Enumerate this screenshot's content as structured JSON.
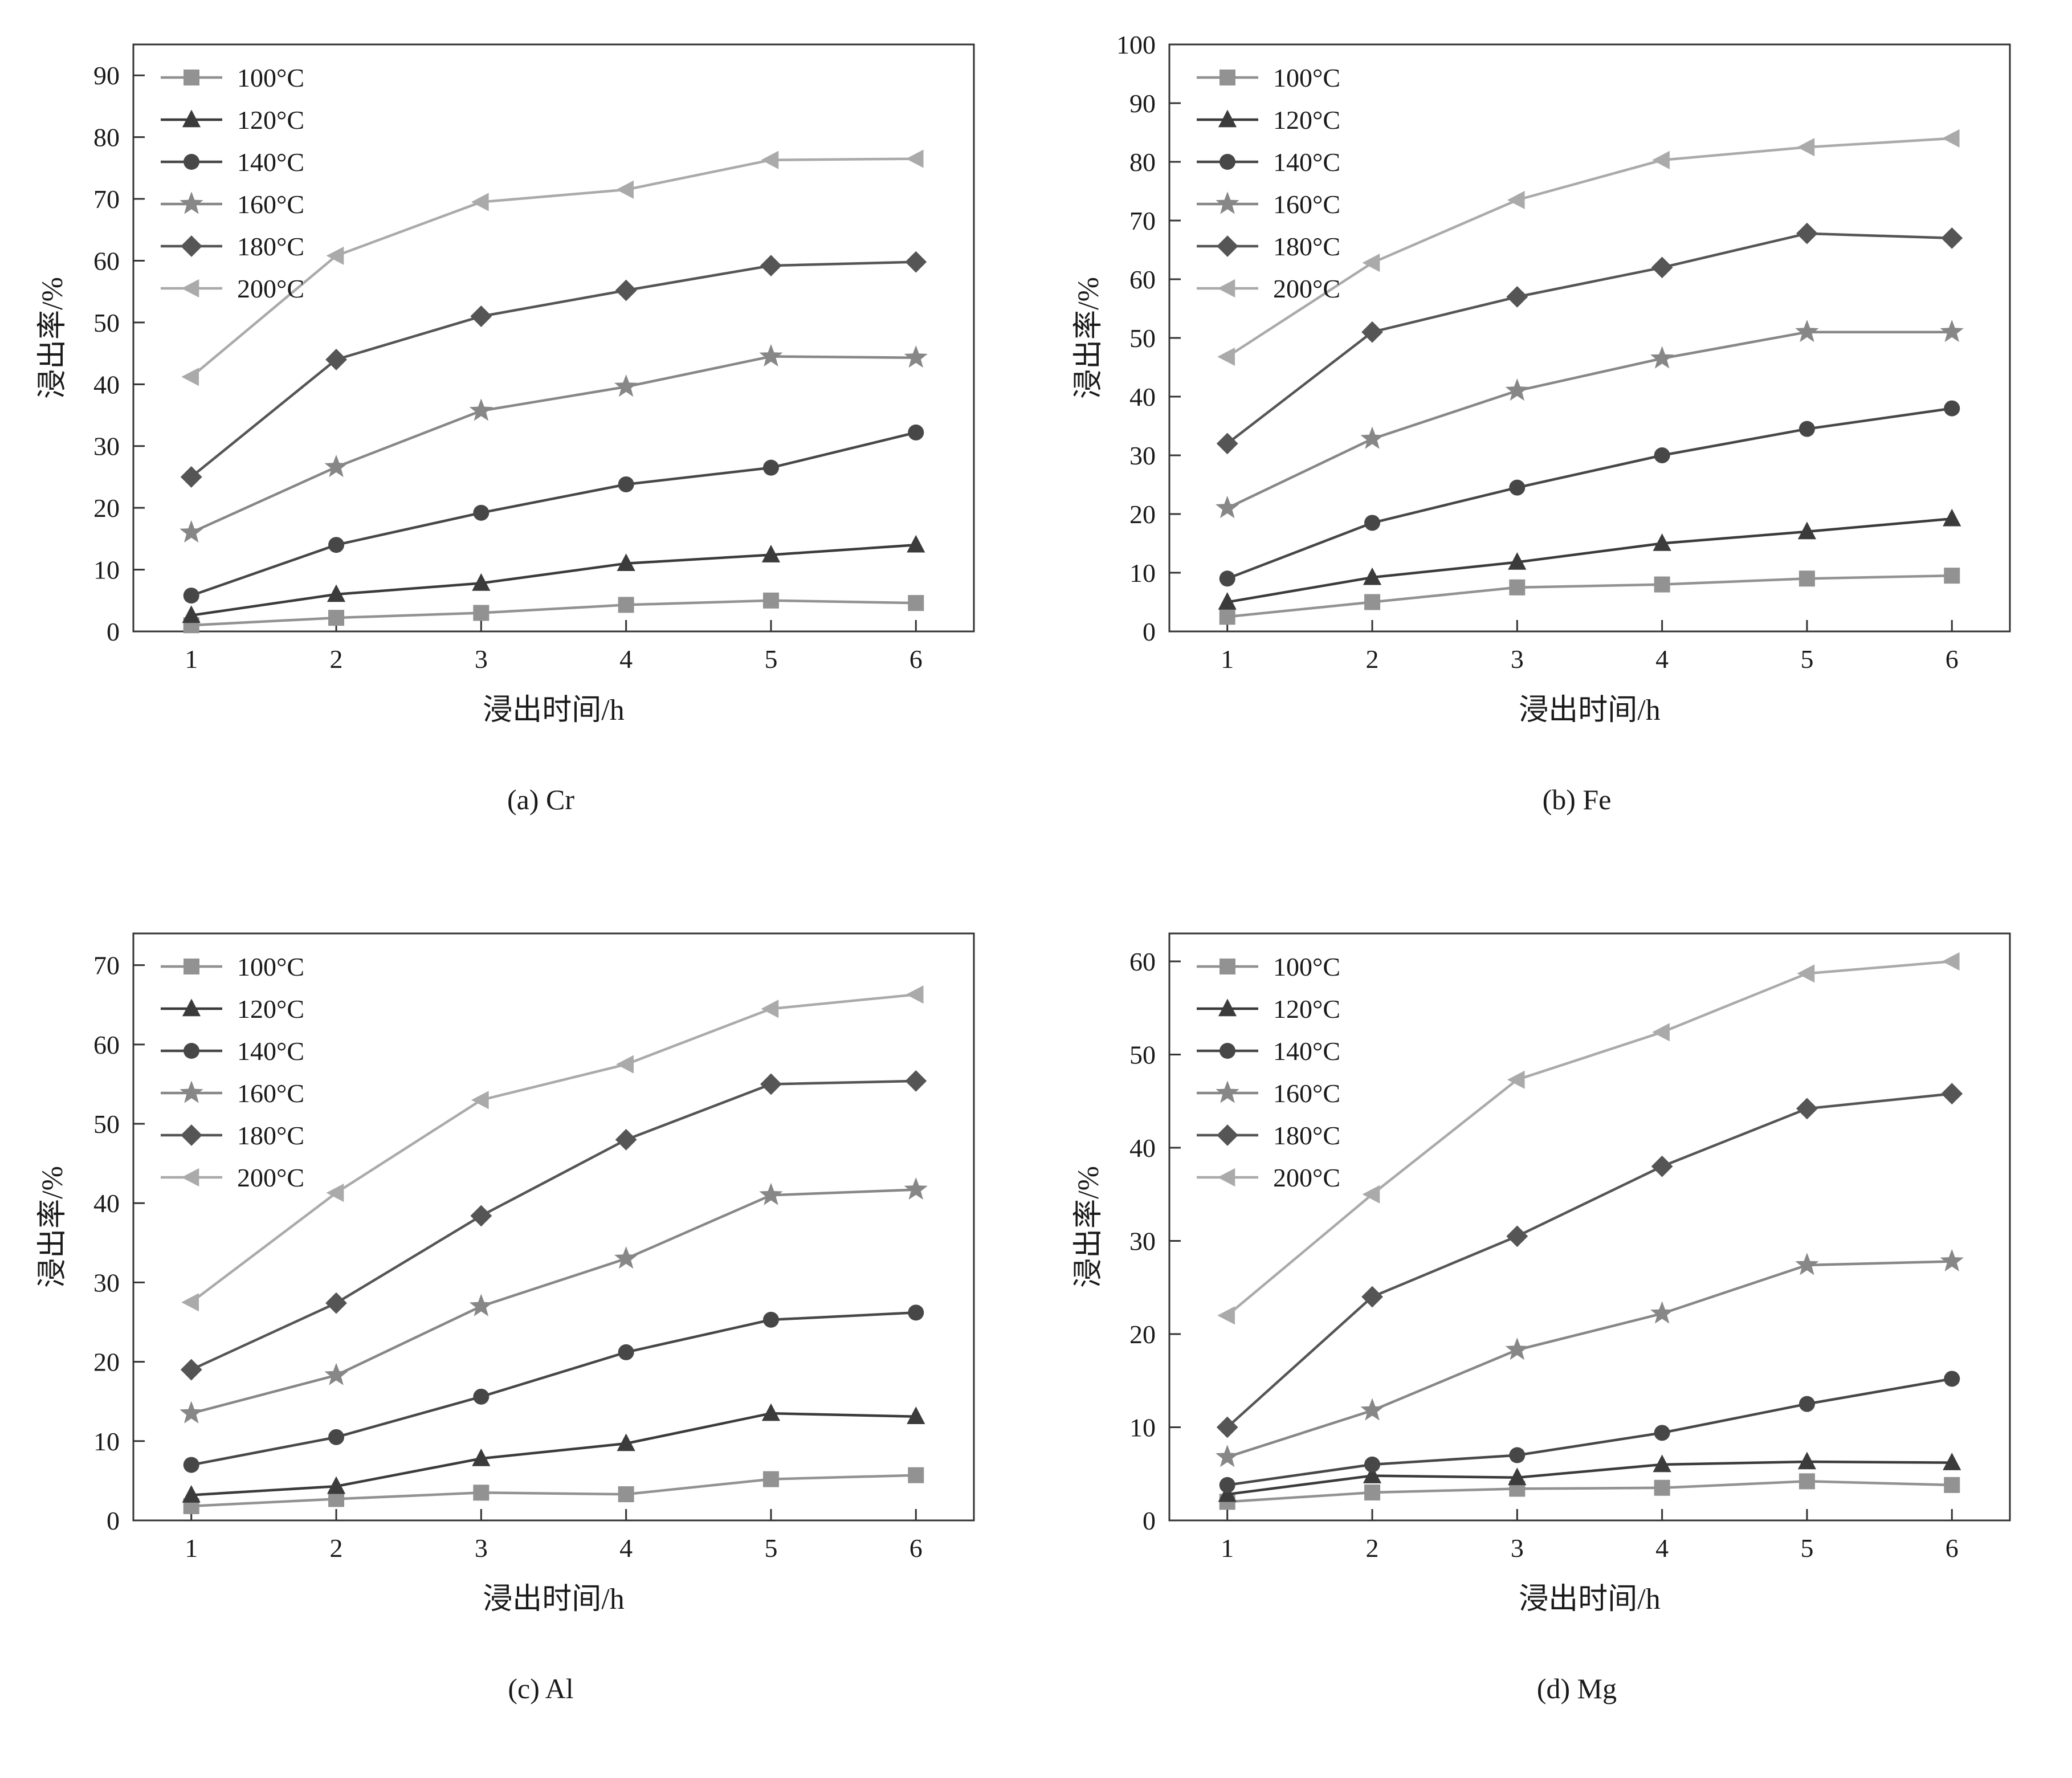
{
  "page": {
    "background": "#ffffff"
  },
  "series_styles": [
    {
      "label": "100°C",
      "marker": "square",
      "color": "#929292"
    },
    {
      "label": "120°C",
      "marker": "triangle",
      "color": "#3b3b3b"
    },
    {
      "label": "140°C",
      "marker": "circle",
      "color": "#474747"
    },
    {
      "label": "160°C",
      "marker": "star",
      "color": "#878787"
    },
    {
      "label": "180°C",
      "marker": "diamond",
      "color": "#555555"
    },
    {
      "label": "200°C",
      "marker": "triangle-left",
      "color": "#aaaaaa"
    }
  ],
  "chart_data": [
    {
      "type": "line",
      "title": "(a) Cr",
      "xlabel": "浸出时间/h",
      "ylabel": "浸出率/%",
      "x": [
        1,
        2,
        3,
        4,
        5,
        6
      ],
      "xlim": [
        0.6,
        6.4
      ],
      "ylim": [
        0,
        95
      ],
      "yticks": [
        0,
        10,
        20,
        30,
        40,
        50,
        60,
        70,
        80,
        90
      ],
      "legend_position": "top-left",
      "grid": false,
      "series": [
        {
          "name": "100°C",
          "values": [
            1.0,
            2.2,
            3.0,
            4.3,
            5.0,
            4.6
          ]
        },
        {
          "name": "120°C",
          "values": [
            2.6,
            6.0,
            7.8,
            11.0,
            12.4,
            14.0
          ]
        },
        {
          "name": "140°C",
          "values": [
            5.8,
            14.0,
            19.2,
            23.8,
            26.5,
            32.2
          ]
        },
        {
          "name": "160°C",
          "values": [
            16.0,
            26.6,
            35.7,
            39.6,
            44.5,
            44.3
          ]
        },
        {
          "name": "180°C",
          "values": [
            25.0,
            44.0,
            51.0,
            55.2,
            59.2,
            59.8
          ]
        },
        {
          "name": "200°C",
          "values": [
            41.2,
            60.8,
            69.5,
            71.5,
            76.3,
            76.5
          ]
        }
      ]
    },
    {
      "type": "line",
      "title": "(b) Fe",
      "xlabel": "浸出时间/h",
      "ylabel": "浸出率/%",
      "x": [
        1,
        2,
        3,
        4,
        5,
        6
      ],
      "xlim": [
        0.6,
        6.4
      ],
      "ylim": [
        0,
        100
      ],
      "yticks": [
        0,
        10,
        20,
        30,
        40,
        50,
        60,
        70,
        80,
        90,
        100
      ],
      "legend_position": "top-left",
      "grid": false,
      "series": [
        {
          "name": "100°C",
          "values": [
            2.5,
            5.0,
            7.5,
            8.0,
            9.0,
            9.5
          ]
        },
        {
          "name": "120°C",
          "values": [
            5.0,
            9.2,
            11.8,
            15.0,
            17.0,
            19.2
          ]
        },
        {
          "name": "140°C",
          "values": [
            9.0,
            18.5,
            24.5,
            30.0,
            34.5,
            38.0
          ]
        },
        {
          "name": "160°C",
          "values": [
            21.0,
            32.8,
            41.0,
            46.5,
            51.0,
            51.0
          ]
        },
        {
          "name": "180°C",
          "values": [
            32.0,
            51.0,
            57.0,
            62.0,
            67.8,
            67.0
          ]
        },
        {
          "name": "200°C",
          "values": [
            46.8,
            62.8,
            73.5,
            80.3,
            82.5,
            84.0
          ]
        }
      ]
    },
    {
      "type": "line",
      "title": "(c) Al",
      "xlabel": "浸出时间/h",
      "ylabel": "浸出率/%",
      "x": [
        1,
        2,
        3,
        4,
        5,
        6
      ],
      "xlim": [
        0.6,
        6.4
      ],
      "ylim": [
        0,
        74
      ],
      "yticks": [
        0,
        10,
        20,
        30,
        40,
        50,
        60,
        70
      ],
      "legend_position": "top-left",
      "grid": false,
      "series": [
        {
          "name": "100°C",
          "values": [
            1.8,
            2.7,
            3.5,
            3.3,
            5.2,
            5.7
          ]
        },
        {
          "name": "120°C",
          "values": [
            3.2,
            4.3,
            7.8,
            9.7,
            13.5,
            13.1
          ]
        },
        {
          "name": "140°C",
          "values": [
            7.0,
            10.5,
            15.6,
            21.2,
            25.3,
            26.2
          ]
        },
        {
          "name": "160°C",
          "values": [
            13.5,
            18.3,
            27.0,
            33.0,
            41.0,
            41.7
          ]
        },
        {
          "name": "180°C",
          "values": [
            19.0,
            27.4,
            38.4,
            48.0,
            55.0,
            55.4
          ]
        },
        {
          "name": "200°C",
          "values": [
            27.5,
            41.3,
            53.0,
            57.5,
            64.5,
            66.3
          ]
        }
      ]
    },
    {
      "type": "line",
      "title": "(d) Mg",
      "xlabel": "浸出时间/h",
      "ylabel": "浸出率/%",
      "x": [
        1,
        2,
        3,
        4,
        5,
        6
      ],
      "xlim": [
        0.6,
        6.4
      ],
      "ylim": [
        0,
        63
      ],
      "yticks": [
        0,
        10,
        20,
        30,
        40,
        50,
        60
      ],
      "legend_position": "top-left",
      "grid": false,
      "series": [
        {
          "name": "100°C",
          "values": [
            2.0,
            3.0,
            3.4,
            3.5,
            4.2,
            3.8
          ]
        },
        {
          "name": "120°C",
          "values": [
            2.8,
            4.8,
            4.6,
            6.0,
            6.3,
            6.2
          ]
        },
        {
          "name": "140°C",
          "values": [
            3.8,
            6.0,
            7.0,
            9.4,
            12.5,
            15.2
          ]
        },
        {
          "name": "160°C",
          "values": [
            6.8,
            11.8,
            18.3,
            22.2,
            27.4,
            27.8
          ]
        },
        {
          "name": "180°C",
          "values": [
            10.0,
            24.0,
            30.5,
            38.0,
            44.2,
            45.8
          ]
        },
        {
          "name": "200°C",
          "values": [
            22.0,
            35.0,
            47.3,
            52.4,
            58.7,
            60.0
          ]
        }
      ]
    }
  ]
}
